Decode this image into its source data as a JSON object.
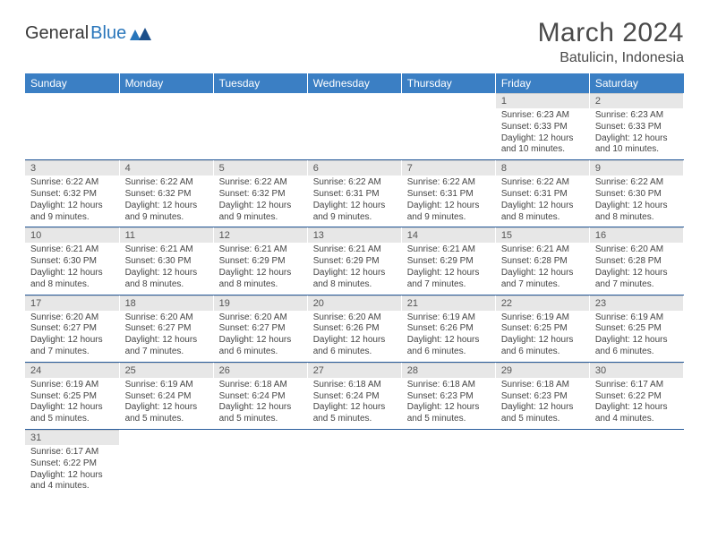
{
  "brand": {
    "part1": "General",
    "part2": "Blue",
    "icon_color": "#2976bb"
  },
  "header": {
    "title": "March 2024",
    "location": "Batulicin, Indonesia"
  },
  "theme": {
    "header_bg": "#3b7fc4",
    "header_text": "#ffffff",
    "daynum_bg": "#e7e7e7",
    "row_divider": "#2a5d9c",
    "body_text": "#444444"
  },
  "day_headers": [
    "Sunday",
    "Monday",
    "Tuesday",
    "Wednesday",
    "Thursday",
    "Friday",
    "Saturday"
  ],
  "weeks": [
    [
      {
        "day": "",
        "sunrise": "",
        "sunset": "",
        "daylight": ""
      },
      {
        "day": "",
        "sunrise": "",
        "sunset": "",
        "daylight": ""
      },
      {
        "day": "",
        "sunrise": "",
        "sunset": "",
        "daylight": ""
      },
      {
        "day": "",
        "sunrise": "",
        "sunset": "",
        "daylight": ""
      },
      {
        "day": "",
        "sunrise": "",
        "sunset": "",
        "daylight": ""
      },
      {
        "day": "1",
        "sunrise": "Sunrise: 6:23 AM",
        "sunset": "Sunset: 6:33 PM",
        "daylight": "Daylight: 12 hours and 10 minutes."
      },
      {
        "day": "2",
        "sunrise": "Sunrise: 6:23 AM",
        "sunset": "Sunset: 6:33 PM",
        "daylight": "Daylight: 12 hours and 10 minutes."
      }
    ],
    [
      {
        "day": "3",
        "sunrise": "Sunrise: 6:22 AM",
        "sunset": "Sunset: 6:32 PM",
        "daylight": "Daylight: 12 hours and 9 minutes."
      },
      {
        "day": "4",
        "sunrise": "Sunrise: 6:22 AM",
        "sunset": "Sunset: 6:32 PM",
        "daylight": "Daylight: 12 hours and 9 minutes."
      },
      {
        "day": "5",
        "sunrise": "Sunrise: 6:22 AM",
        "sunset": "Sunset: 6:32 PM",
        "daylight": "Daylight: 12 hours and 9 minutes."
      },
      {
        "day": "6",
        "sunrise": "Sunrise: 6:22 AM",
        "sunset": "Sunset: 6:31 PM",
        "daylight": "Daylight: 12 hours and 9 minutes."
      },
      {
        "day": "7",
        "sunrise": "Sunrise: 6:22 AM",
        "sunset": "Sunset: 6:31 PM",
        "daylight": "Daylight: 12 hours and 9 minutes."
      },
      {
        "day": "8",
        "sunrise": "Sunrise: 6:22 AM",
        "sunset": "Sunset: 6:31 PM",
        "daylight": "Daylight: 12 hours and 8 minutes."
      },
      {
        "day": "9",
        "sunrise": "Sunrise: 6:22 AM",
        "sunset": "Sunset: 6:30 PM",
        "daylight": "Daylight: 12 hours and 8 minutes."
      }
    ],
    [
      {
        "day": "10",
        "sunrise": "Sunrise: 6:21 AM",
        "sunset": "Sunset: 6:30 PM",
        "daylight": "Daylight: 12 hours and 8 minutes."
      },
      {
        "day": "11",
        "sunrise": "Sunrise: 6:21 AM",
        "sunset": "Sunset: 6:30 PM",
        "daylight": "Daylight: 12 hours and 8 minutes."
      },
      {
        "day": "12",
        "sunrise": "Sunrise: 6:21 AM",
        "sunset": "Sunset: 6:29 PM",
        "daylight": "Daylight: 12 hours and 8 minutes."
      },
      {
        "day": "13",
        "sunrise": "Sunrise: 6:21 AM",
        "sunset": "Sunset: 6:29 PM",
        "daylight": "Daylight: 12 hours and 8 minutes."
      },
      {
        "day": "14",
        "sunrise": "Sunrise: 6:21 AM",
        "sunset": "Sunset: 6:29 PM",
        "daylight": "Daylight: 12 hours and 7 minutes."
      },
      {
        "day": "15",
        "sunrise": "Sunrise: 6:21 AM",
        "sunset": "Sunset: 6:28 PM",
        "daylight": "Daylight: 12 hours and 7 minutes."
      },
      {
        "day": "16",
        "sunrise": "Sunrise: 6:20 AM",
        "sunset": "Sunset: 6:28 PM",
        "daylight": "Daylight: 12 hours and 7 minutes."
      }
    ],
    [
      {
        "day": "17",
        "sunrise": "Sunrise: 6:20 AM",
        "sunset": "Sunset: 6:27 PM",
        "daylight": "Daylight: 12 hours and 7 minutes."
      },
      {
        "day": "18",
        "sunrise": "Sunrise: 6:20 AM",
        "sunset": "Sunset: 6:27 PM",
        "daylight": "Daylight: 12 hours and 7 minutes."
      },
      {
        "day": "19",
        "sunrise": "Sunrise: 6:20 AM",
        "sunset": "Sunset: 6:27 PM",
        "daylight": "Daylight: 12 hours and 6 minutes."
      },
      {
        "day": "20",
        "sunrise": "Sunrise: 6:20 AM",
        "sunset": "Sunset: 6:26 PM",
        "daylight": "Daylight: 12 hours and 6 minutes."
      },
      {
        "day": "21",
        "sunrise": "Sunrise: 6:19 AM",
        "sunset": "Sunset: 6:26 PM",
        "daylight": "Daylight: 12 hours and 6 minutes."
      },
      {
        "day": "22",
        "sunrise": "Sunrise: 6:19 AM",
        "sunset": "Sunset: 6:25 PM",
        "daylight": "Daylight: 12 hours and 6 minutes."
      },
      {
        "day": "23",
        "sunrise": "Sunrise: 6:19 AM",
        "sunset": "Sunset: 6:25 PM",
        "daylight": "Daylight: 12 hours and 6 minutes."
      }
    ],
    [
      {
        "day": "24",
        "sunrise": "Sunrise: 6:19 AM",
        "sunset": "Sunset: 6:25 PM",
        "daylight": "Daylight: 12 hours and 5 minutes."
      },
      {
        "day": "25",
        "sunrise": "Sunrise: 6:19 AM",
        "sunset": "Sunset: 6:24 PM",
        "daylight": "Daylight: 12 hours and 5 minutes."
      },
      {
        "day": "26",
        "sunrise": "Sunrise: 6:18 AM",
        "sunset": "Sunset: 6:24 PM",
        "daylight": "Daylight: 12 hours and 5 minutes."
      },
      {
        "day": "27",
        "sunrise": "Sunrise: 6:18 AM",
        "sunset": "Sunset: 6:24 PM",
        "daylight": "Daylight: 12 hours and 5 minutes."
      },
      {
        "day": "28",
        "sunrise": "Sunrise: 6:18 AM",
        "sunset": "Sunset: 6:23 PM",
        "daylight": "Daylight: 12 hours and 5 minutes."
      },
      {
        "day": "29",
        "sunrise": "Sunrise: 6:18 AM",
        "sunset": "Sunset: 6:23 PM",
        "daylight": "Daylight: 12 hours and 5 minutes."
      },
      {
        "day": "30",
        "sunrise": "Sunrise: 6:17 AM",
        "sunset": "Sunset: 6:22 PM",
        "daylight": "Daylight: 12 hours and 4 minutes."
      }
    ],
    [
      {
        "day": "31",
        "sunrise": "Sunrise: 6:17 AM",
        "sunset": "Sunset: 6:22 PM",
        "daylight": "Daylight: 12 hours and 4 minutes."
      },
      {
        "day": "",
        "sunrise": "",
        "sunset": "",
        "daylight": ""
      },
      {
        "day": "",
        "sunrise": "",
        "sunset": "",
        "daylight": ""
      },
      {
        "day": "",
        "sunrise": "",
        "sunset": "",
        "daylight": ""
      },
      {
        "day": "",
        "sunrise": "",
        "sunset": "",
        "daylight": ""
      },
      {
        "day": "",
        "sunrise": "",
        "sunset": "",
        "daylight": ""
      },
      {
        "day": "",
        "sunrise": "",
        "sunset": "",
        "daylight": ""
      }
    ]
  ]
}
